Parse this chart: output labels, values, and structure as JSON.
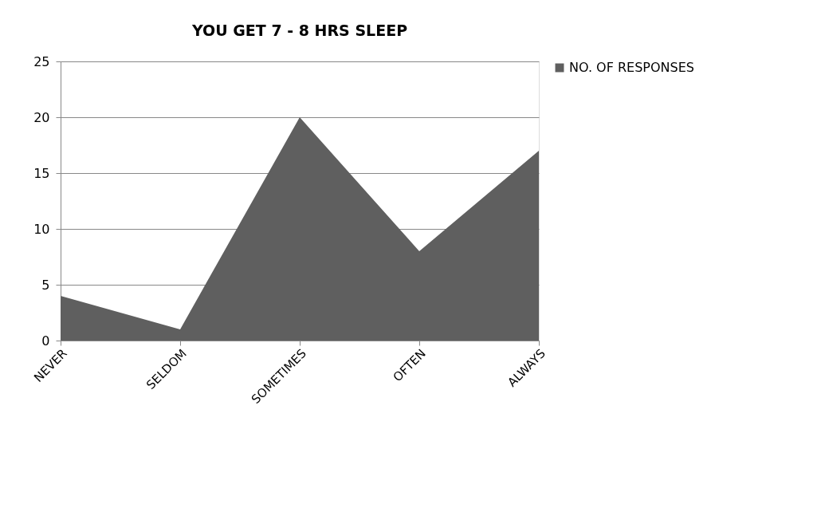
{
  "chart_data": {
    "type": "area",
    "title": "YOU GET 7 - 8 HRS SLEEP",
    "categories": [
      "NEVER",
      "SELDOM",
      "SOMETIMES",
      "OFTEN",
      "ALWAYS"
    ],
    "series": [
      {
        "name": "NO. OF RESPONSES",
        "color": "#5f5f5f",
        "values": [
          4,
          1,
          20,
          8,
          17
        ]
      }
    ],
    "ylim": [
      0,
      25
    ],
    "yticks": [
      0,
      5,
      10,
      15,
      20,
      25
    ],
    "grid": "y",
    "legend": "right"
  }
}
